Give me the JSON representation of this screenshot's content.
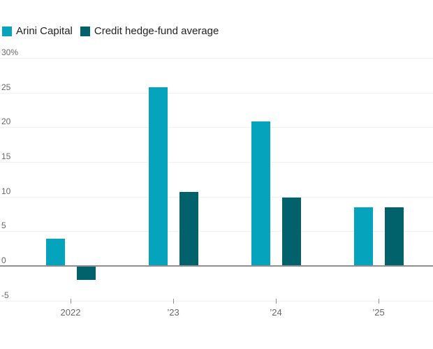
{
  "legend": {
    "items": [
      {
        "label": "Arini Capital",
        "color": "#06a3bc"
      },
      {
        "label": "Credit hedge-fund average",
        "color": "#02626c"
      }
    ]
  },
  "chart_data": {
    "type": "bar",
    "categories": [
      "2022",
      "’23",
      "’24",
      "’25"
    ],
    "series": [
      {
        "name": "Arini Capital",
        "color": "#06a3bc",
        "values": [
          3.9,
          25.8,
          20.8,
          8.5
        ]
      },
      {
        "name": "Credit hedge-fund average",
        "color": "#02626c",
        "values": [
          -2.0,
          10.7,
          9.9,
          8.5
        ]
      }
    ],
    "y_unit": "%",
    "yticks": [
      30,
      25,
      20,
      15,
      10,
      5,
      0,
      -5
    ],
    "ytick_labels": [
      "30%",
      "25",
      "20",
      "15",
      "10",
      "5",
      "0",
      "-5"
    ],
    "ylim": [
      -5,
      30
    ],
    "grid": true,
    "legend_position": "top-left",
    "zero_line": true
  }
}
